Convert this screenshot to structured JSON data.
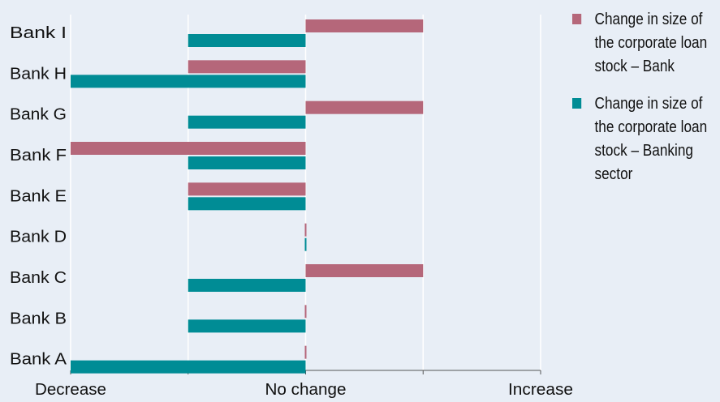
{
  "chart_data": {
    "type": "bar",
    "orientation": "horizontal",
    "categories": [
      "Bank I",
      "Bank H",
      "Bank G",
      "Bank F",
      "Bank E",
      "Bank D",
      "Bank C",
      "Bank B",
      "Bank A"
    ],
    "x_tick_labels": [
      "Decrease",
      "No change",
      "Increase"
    ],
    "xlim": [
      -2,
      2
    ],
    "series": [
      {
        "name": "Change in size of the corporate loan stock – Bank",
        "color": "#b5677a",
        "values": [
          1,
          -1,
          1,
          -2,
          -1,
          0,
          1,
          0,
          0
        ]
      },
      {
        "name": "Change in size of the corporate loan stock – Banking sector",
        "color": "#008c95",
        "values": [
          -1,
          -2,
          -1,
          -1,
          -1,
          0,
          -1,
          -1,
          -2
        ]
      }
    ],
    "grid": "vertical",
    "legend_position": "right"
  }
}
